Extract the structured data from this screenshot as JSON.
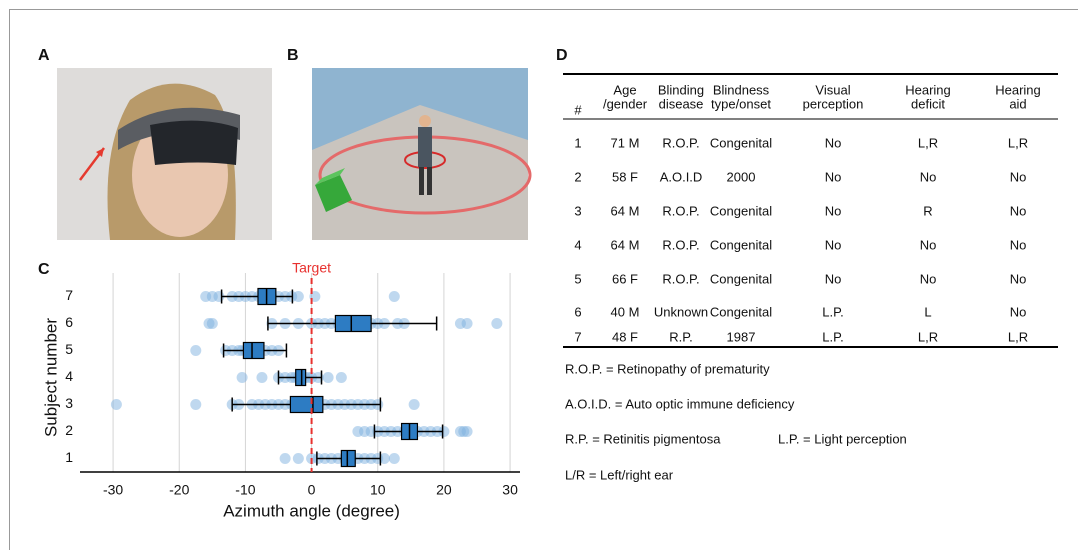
{
  "panel_labels": [
    "A",
    "B",
    "C",
    "D"
  ],
  "chart_data": {
    "type": "box",
    "orientation": "horizontal",
    "x_label": "Azimuth angle (degree)",
    "y_label": "Subject number",
    "annotation": {
      "text": "Target",
      "value": 0,
      "color": "#e8312f"
    },
    "categories": [
      "1",
      "2",
      "3",
      "4",
      "5",
      "6",
      "7"
    ],
    "xlim": [
      -35,
      31.5
    ],
    "xticks": [
      -30,
      -20,
      -10,
      0,
      10,
      20,
      30
    ],
    "grid": true,
    "box_color": "#2d7cc3",
    "point_color": "#7fb2e0",
    "boxes": [
      {
        "min": 0.8,
        "q1": 4.5,
        "median": 5.4,
        "q3": 6.6,
        "max": 10.4,
        "points": [
          -4,
          -2,
          0,
          1,
          2,
          3,
          4,
          5,
          6,
          7,
          8,
          9,
          10,
          11,
          12.5
        ]
      },
      {
        "min": 9.5,
        "q1": 13.6,
        "median": 14.8,
        "q3": 16,
        "max": 19.8,
        "points": [
          7,
          8,
          9,
          10,
          11,
          12,
          13,
          14,
          15,
          16,
          17,
          18,
          19,
          20,
          22.5,
          23,
          23.5
        ]
      },
      {
        "min": -12,
        "q1": -3.2,
        "median": 0.2,
        "q3": 1.7,
        "max": 10.4,
        "points": [
          -29.5,
          -17.5,
          -12,
          -11,
          -9,
          -8,
          -7,
          -6,
          -5,
          -4,
          -3,
          -2,
          -1,
          0,
          1,
          2,
          3,
          4,
          5,
          6,
          7,
          8,
          9,
          10,
          15.5
        ]
      },
      {
        "min": -5,
        "q1": -2.4,
        "median": -1.5,
        "q3": -0.9,
        "max": 1.5,
        "points": [
          -10.5,
          -7.5,
          -5,
          -4,
          -3,
          -2.5,
          -2,
          -1.5,
          -1,
          -0.5,
          0,
          1,
          2.5,
          4.5
        ]
      },
      {
        "min": -13.3,
        "q1": -10.3,
        "median": -9,
        "q3": -7.2,
        "max": -3.8,
        "points": [
          -17.5,
          -13,
          -12,
          -11,
          -10.5,
          -10,
          -9.5,
          -9,
          -8.5,
          -8,
          -7,
          -6,
          -5
        ]
      },
      {
        "min": -6.6,
        "q1": 3.6,
        "median": 6,
        "q3": 9,
        "max": 18.9,
        "points": [
          -15.5,
          -15,
          -6,
          -4,
          -2,
          0,
          1,
          2,
          3,
          4,
          5,
          6,
          7,
          8,
          9,
          10,
          11,
          13,
          14,
          22.5,
          23.5,
          28
        ]
      },
      {
        "min": -13.6,
        "q1": -8.1,
        "median": -6.8,
        "q3": -5.4,
        "max": -2.9,
        "points": [
          -16,
          -15,
          -14,
          -12,
          -11,
          -10,
          -9,
          -8,
          -7,
          -6,
          -5,
          -4,
          -3,
          -2,
          0.5,
          12.5
        ]
      }
    ]
  },
  "table": {
    "header": [
      [
        "#"
      ],
      [
        "Age",
        "/gender"
      ],
      [
        "Blinding",
        "disease"
      ],
      [
        "Blindness",
        "type/onset"
      ],
      [
        "Visual",
        "perception"
      ],
      [
        "Hearing",
        "deficit"
      ],
      [
        "Hearing",
        "aid"
      ]
    ],
    "rows": [
      [
        1,
        "71 M",
        "R.O.P.",
        "Congenital",
        "No",
        "L,R",
        "L,R"
      ],
      [
        2,
        "58 F",
        "A.O.I.D",
        "2000",
        "No",
        "No",
        "No"
      ],
      [
        3,
        "64 M",
        "R.O.P.",
        "Congenital",
        "No",
        "R",
        "No"
      ],
      [
        4,
        "64 M",
        "R.O.P.",
        "Congenital",
        "No",
        "No",
        "No"
      ],
      [
        5,
        "66 F",
        "R.O.P.",
        "Congenital",
        "No",
        "No",
        "No"
      ],
      [
        6,
        "40 M",
        "Unknown",
        "Congenital",
        "L.P.",
        "L",
        "No"
      ],
      [
        7,
        "48 F",
        "R.P.",
        "1987",
        "L.P.",
        "L,R",
        "L,R"
      ]
    ]
  },
  "footnotes": [
    "R.O.P. = Retinopathy of prematurity",
    "A.O.I.D. = Auto optic immune deficiency",
    "R.P. = Retinitis pigmentosa",
    "L.P. = Light perception",
    "L/R = Left/right ear"
  ]
}
